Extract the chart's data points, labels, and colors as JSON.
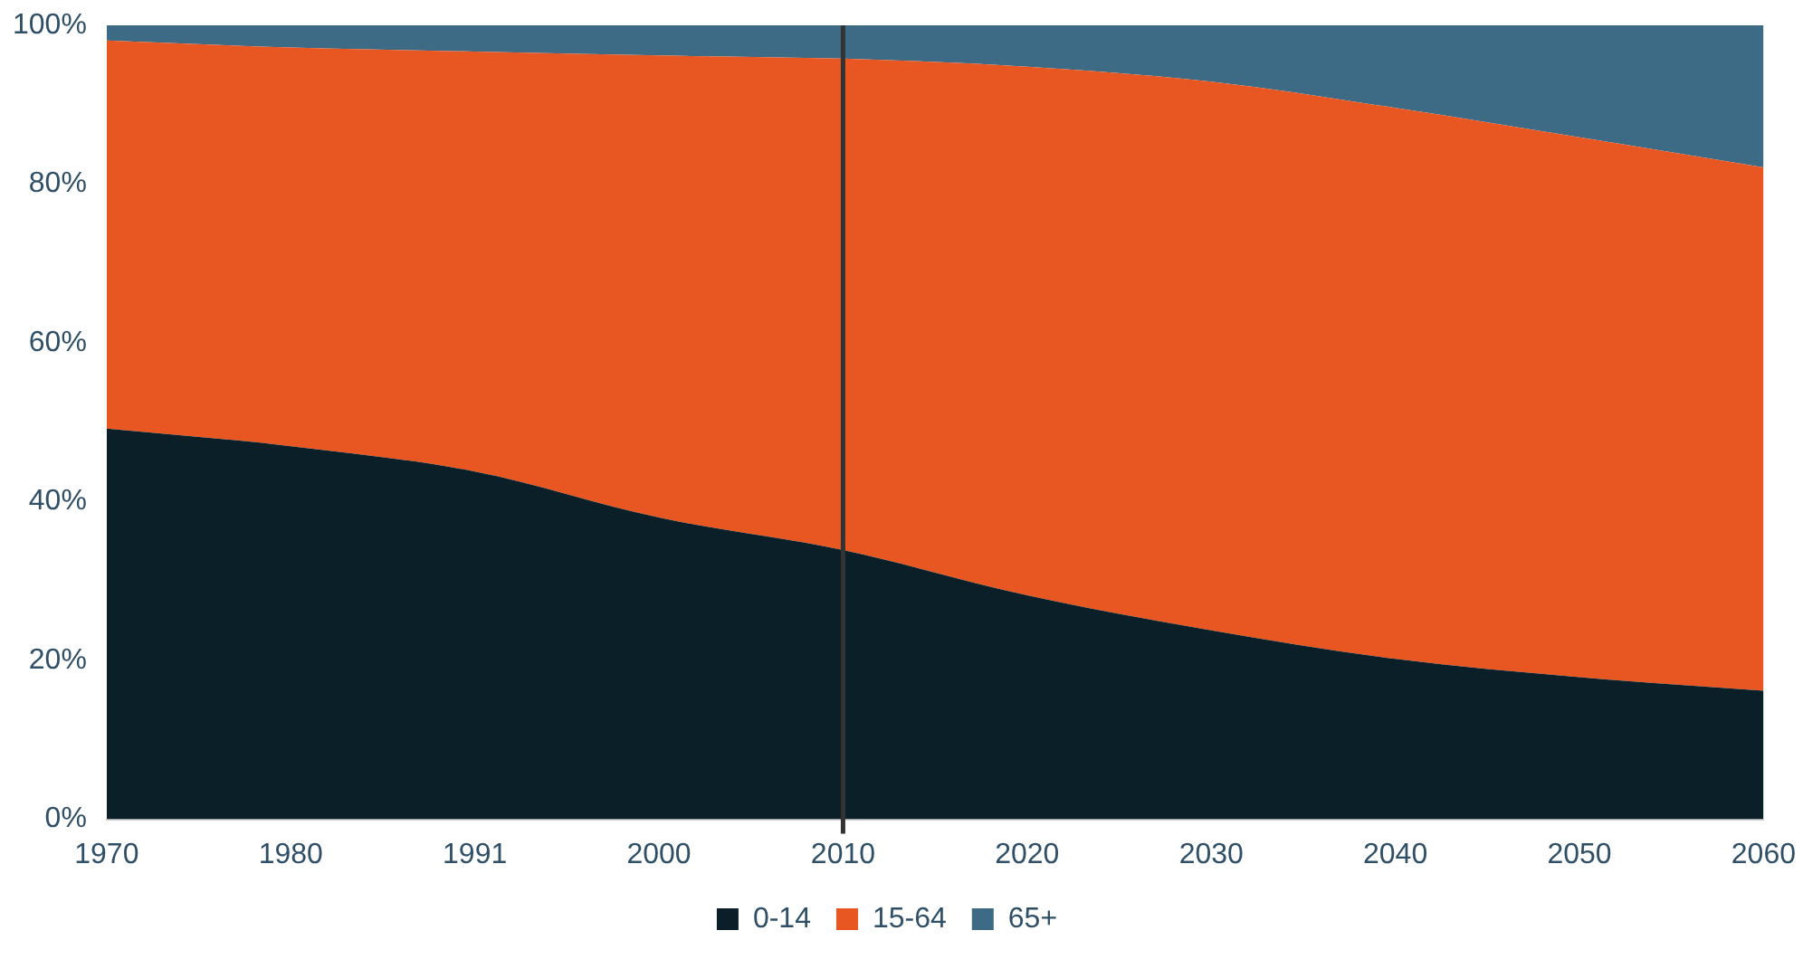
{
  "chart_data": {
    "type": "area",
    "stacked": true,
    "categories": [
      "1970",
      "1980",
      "1991",
      "2000",
      "2010",
      "2020",
      "2030",
      "2040",
      "2050",
      "2060"
    ],
    "series": [
      {
        "name": "0-14",
        "color": "#0a1f28",
        "values": [
          49.2,
          47,
          43.8,
          38,
          33.9,
          28.2,
          23.8,
          20.2,
          17.9,
          16.2
        ]
      },
      {
        "name": "15-64",
        "color": "#e85621",
        "values": [
          48.9,
          50.2,
          52.9,
          58.2,
          61.9,
          66.6,
          69.1,
          69.4,
          68,
          65.9
        ]
      },
      {
        "name": "65+",
        "color": "#3d6a85",
        "values": [
          1.9,
          2.8,
          3.3,
          3.8,
          4.2,
          5.2,
          7.1,
          10.4,
          14.1,
          17.9
        ]
      }
    ],
    "ylim": [
      0,
      100
    ],
    "yticks": [
      {
        "value": 0,
        "label": "0%"
      },
      {
        "value": 20,
        "label": "20%"
      },
      {
        "value": 40,
        "label": "40%"
      },
      {
        "value": 60,
        "label": "60%"
      },
      {
        "value": 80,
        "label": "80%"
      },
      {
        "value": 100,
        "label": "100%"
      }
    ],
    "ref_lines": [
      {
        "axis": "x",
        "value": "2010",
        "color": "#333333"
      }
    ],
    "legend": "bottom",
    "grid": false
  }
}
